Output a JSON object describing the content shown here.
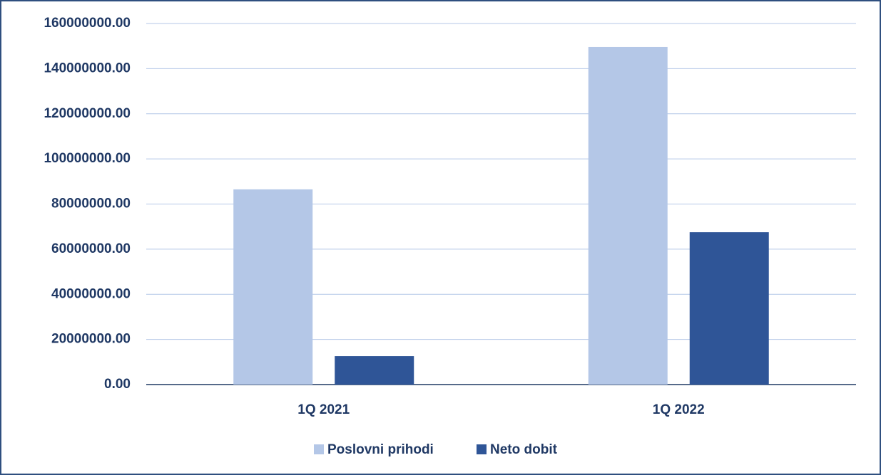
{
  "chart_data": {
    "type": "bar",
    "categories": [
      "1Q 2021",
      "1Q 2022"
    ],
    "series": [
      {
        "name": "Poslovni prihodi",
        "color": "#b4c7e7",
        "values": [
          86500000,
          149600000
        ]
      },
      {
        "name": "Neto dobit",
        "color": "#2f5597",
        "values": [
          12600000,
          67500000
        ]
      }
    ],
    "ylim": [
      0,
      160000000
    ],
    "yticks": [
      {
        "value": 0,
        "label": "0.00"
      },
      {
        "value": 20000000,
        "label": "20000000.00"
      },
      {
        "value": 40000000,
        "label": "40000000.00"
      },
      {
        "value": 60000000,
        "label": "60000000.00"
      },
      {
        "value": 80000000,
        "label": "80000000.00"
      },
      {
        "value": 100000000,
        "label": "100000000.00"
      },
      {
        "value": 120000000,
        "label": "120000000.00"
      },
      {
        "value": 140000000,
        "label": "140000000.00"
      },
      {
        "value": 160000000,
        "label": "160000000.00"
      }
    ],
    "grid": true,
    "legend": "bottom"
  }
}
